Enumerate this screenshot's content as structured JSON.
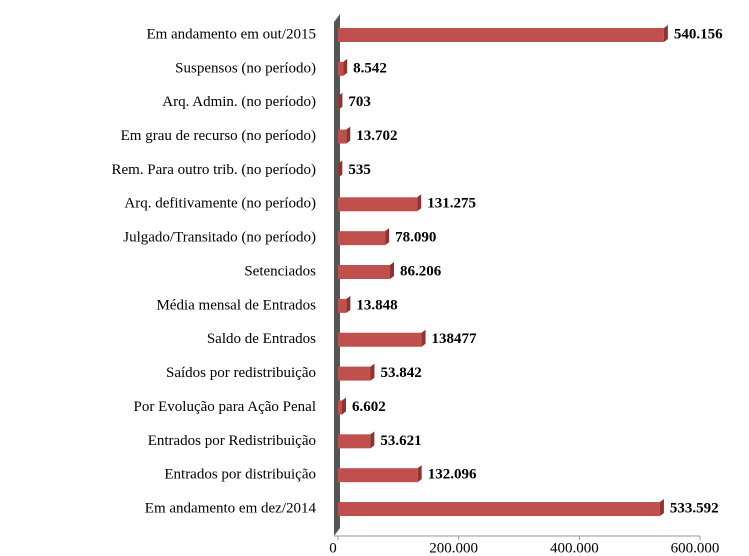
{
  "chart_data": {
    "type": "barh",
    "categories": [
      "Em andamento em out/2015",
      "Suspensos (no período)",
      "Arq. Admin. (no período)",
      "Em grau de recurso (no período)",
      "Rem. Para outro trib. (no período)",
      "Arq. defitivamente (no período)",
      "Julgado/Transitado (no período)",
      "Setenciados",
      "Média mensal de Entrados",
      "Saldo de Entrados",
      "Saídos por redistribuição",
      "Por Evolução para Ação Penal",
      "Entrados por Redistribuição",
      "Entrados por distribuição",
      "Em andamento em dez/2014"
    ],
    "values": [
      540156,
      8542,
      703,
      13702,
      535,
      131275,
      78090,
      86206,
      13848,
      138477,
      53842,
      6602,
      53621,
      132096,
      533592
    ],
    "value_labels": [
      "540.156",
      "8.542",
      "703",
      "13.702",
      "535",
      "131.275",
      "78.090",
      "86.206",
      "13.848",
      "138477",
      "53.842",
      "6.602",
      "53.621",
      "132.096",
      "533.592"
    ],
    "color": "#c0504d",
    "xlim": [
      0,
      600000
    ],
    "xticks": [
      0,
      {
        "value": 200000,
        "label": "200.000"
      },
      {
        "value": 400000,
        "label": "400.000"
      },
      {
        "value": 600000,
        "label": "600.000"
      }
    ]
  }
}
